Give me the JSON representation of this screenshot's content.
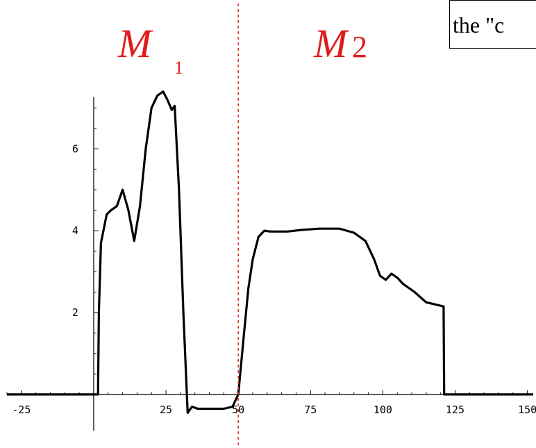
{
  "annotation_box": {
    "text": "the \"c"
  },
  "region_labels": [
    {
      "main": "M",
      "sub": "1"
    },
    {
      "main": "M",
      "sub": "2"
    }
  ],
  "colors": {
    "line": "#000000",
    "region": "#e01b1b",
    "divider": "#d9342a"
  },
  "chart_data": {
    "type": "line",
    "title": "",
    "xlabel": "",
    "ylabel": "",
    "xlim": [
      -30,
      152
    ],
    "ylim": [
      -0.8,
      7.6
    ],
    "xticks": [
      -25,
      25,
      50,
      75,
      100,
      125,
      150
    ],
    "xtick_labels": [
      "-25",
      "25",
      "50",
      "75",
      "100",
      "125",
      "150"
    ],
    "yticks": [
      2,
      4,
      6
    ],
    "ytick_labels": [
      "2",
      "4",
      "6"
    ],
    "grid": false,
    "divider_x": 50,
    "series": [
      {
        "x": [
          -30,
          1.5,
          1.8,
          2.5,
          4.5,
          6,
          8,
          10,
          12,
          14,
          16,
          18,
          20,
          22,
          24,
          25.5,
          27,
          28,
          29.5,
          31,
          32.5,
          34,
          36,
          40,
          45,
          48,
          50,
          52,
          53.5,
          55,
          57,
          59,
          61,
          63,
          67,
          72,
          78,
          85,
          90,
          94,
          97,
          99,
          101,
          103,
          105,
          107,
          111,
          115,
          118,
          121,
          121.2,
          121.5,
          152
        ],
        "y": [
          0,
          0,
          2,
          3.7,
          4.4,
          4.5,
          4.6,
          5.0,
          4.5,
          3.75,
          4.6,
          6.0,
          7.0,
          7.3,
          7.4,
          7.2,
          6.95,
          7.05,
          5.0,
          2.0,
          -0.45,
          -0.3,
          -0.35,
          -0.35,
          -0.35,
          -0.3,
          0.0,
          1.5,
          2.6,
          3.3,
          3.85,
          4.0,
          3.98,
          3.98,
          3.98,
          4.02,
          4.05,
          4.05,
          3.95,
          3.75,
          3.3,
          2.9,
          2.8,
          2.95,
          2.85,
          2.7,
          2.5,
          2.25,
          2.2,
          2.15,
          0.0,
          0.0,
          0.0
        ]
      }
    ]
  }
}
